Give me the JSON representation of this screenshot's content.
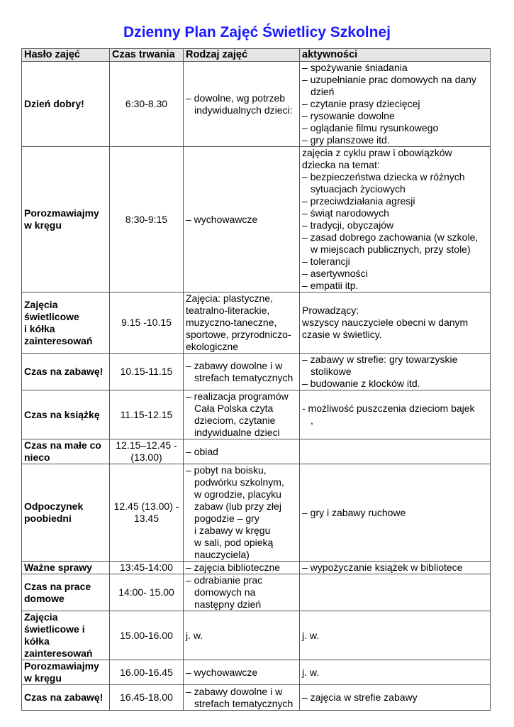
{
  "title": "Dzienny Plan Zajęć Świetlicy Szkolnej",
  "headers": [
    "Hasło zajęć",
    "Czas trwania",
    "Rodzaj zajęć",
    "aktywności"
  ],
  "rows": [
    {
      "cells": [
        [
          "Dzień dobry!"
        ],
        [
          "6:30-8.30"
        ],
        [
          "– dowolne, wg potrzeb",
          "  indywidualnych dzieci:"
        ],
        [
          "– spożywanie śniadania",
          "– uzupełnianie prac domowych  na dany",
          "  dzień",
          "– czytanie prasy dziecięcej",
          "– rysowanie dowolne",
          "– oglądanie filmu rysunkowego",
          "– gry planszowe itd."
        ]
      ]
    },
    {
      "cells": [
        [
          "Porozmawiajmy",
          "w kręgu"
        ],
        [
          "8:30-9:15"
        ],
        [
          "– wychowawcze"
        ],
        [
          " zajęcia z cyklu praw i obowiązków",
          " dziecka na temat:",
          "– bezpieczeństwa dziecka w różnych",
          "  sytuacjach życiowych",
          "– przeciwdziałania agresji",
          "– świąt narodowych",
          "– tradycji, obyczajów",
          "– zasad dobrego zachowania (w szkole,",
          "  w miejscach publicznych, przy stole)",
          "– tolerancji",
          "– asertywności",
          "– empatii itp."
        ]
      ]
    },
    {
      "cells": [
        [
          "Zajęcia",
          "świetlicowe",
          "i kółka",
          "zainteresowań"
        ],
        [
          "9.15 -10.15"
        ],
        [
          "Zajęcia: plastyczne,",
          "teatralno-literackie,",
          "muzyczno-taneczne,",
          "sportowe, przyrodniczo-",
          "ekologiczne"
        ],
        [
          "Prowadzący:",
          "wszyscy nauczyciele obecni w danym",
          "czasie w świetlicy."
        ]
      ]
    },
    {
      "cells": [
        [
          "Czas na zabawę!"
        ],
        [
          "10.15-11.15"
        ],
        [
          "– zabawy dowolne i w",
          "  strefach tematycznych"
        ],
        [
          "– zabawy w strefie: gry towarzyskie",
          "  stolikowe",
          "– budowanie z klocków itd."
        ]
      ]
    },
    {
      "cells": [
        [
          "Czas na książkę"
        ],
        [
          "11.15-12.15"
        ],
        [
          "– realizacja programów",
          "  Cała Polska czyta",
          "  dzieciom, czytanie",
          "  indywidualne dzieci"
        ],
        [
          "- możliwość puszczenia dzieciom bajek",
          "  ,"
        ]
      ]
    },
    {
      "cells": [
        [
          "Czas na małe co",
          "nieco"
        ],
        [
          "12.15–12.45 -",
          "(13.00)"
        ],
        [
          "– obiad"
        ],
        []
      ]
    },
    {
      "cells": [
        [
          "Odpoczynek",
          "poobiedni"
        ],
        [
          "12.45 (13.00) -",
          "13.45"
        ],
        [
          "– pobyt na boisku,",
          "  podwórku szkolnym,",
          "  w ogrodzie, placyku",
          "  zabaw (lub przy złej",
          "  pogodzie – gry",
          "  i zabawy w kręgu",
          "  w sali, pod opieką",
          "  nauczyciela)"
        ],
        [
          "– gry i zabawy ruchowe"
        ]
      ]
    },
    {
      "cells": [
        [
          "Ważne sprawy"
        ],
        [
          "13:45-14:00"
        ],
        [
          "– zajęcia biblioteczne"
        ],
        [
          "– wypożyczanie książek w bibliotece"
        ]
      ]
    },
    {
      "cells": [
        [
          "Czas na prace",
          "domowe"
        ],
        [
          "14:00- 15.00"
        ],
        [
          "– odrabianie prac",
          "  domowych na",
          "  następny dzień"
        ],
        []
      ]
    },
    {
      "cells": [
        [
          "Zajęcia",
          "świetlicowe i",
          "kółka",
          "zainteresowań"
        ],
        [
          "15.00-16.00"
        ],
        [
          "j. w."
        ],
        [
          "j. w."
        ]
      ]
    },
    {
      "cells": [
        [
          "Porozmawiajmy",
          "w kręgu"
        ],
        [
          "16.00-16.45"
        ],
        [
          "– wychowawcze"
        ],
        [
          "j. w."
        ]
      ]
    },
    {
      "cells": [
        [
          "Czas na zabawę!"
        ],
        [
          "16.45-18.00"
        ],
        [
          "– zabawy dowolne i w",
          "  strefach tematycznych"
        ],
        [
          "– zajęcia w strefie zabawy"
        ]
      ]
    }
  ]
}
